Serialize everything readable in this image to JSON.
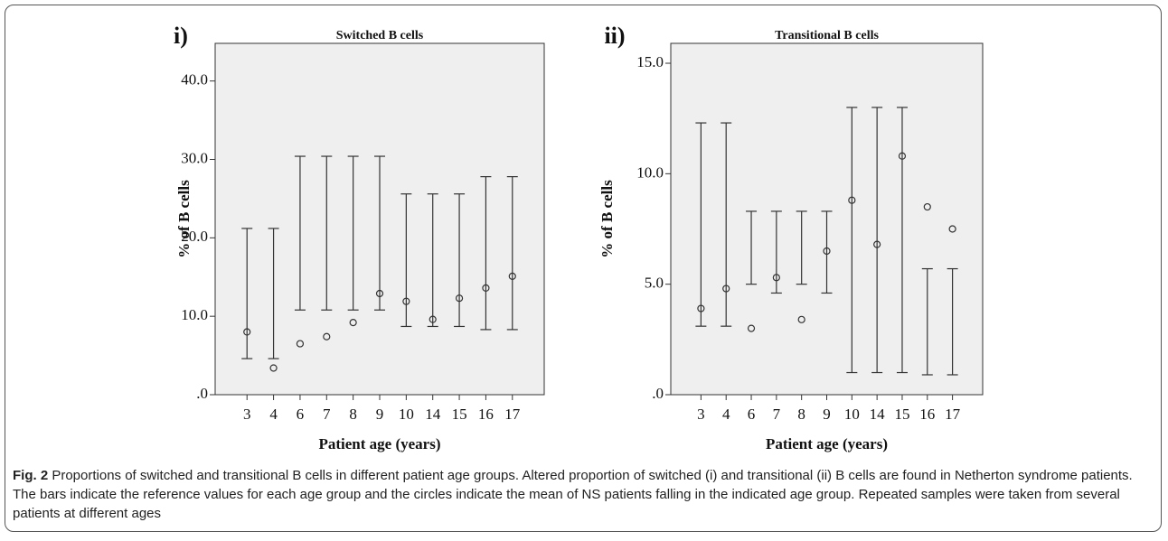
{
  "chart_data": [
    {
      "type": "range",
      "panel": "i)",
      "title": "Switched B cells",
      "ylabel": "% of B cells",
      "xlabel": "Patient age (years)",
      "categories": [
        "3",
        "4",
        "6",
        "7",
        "8",
        "9",
        "10",
        "14",
        "15",
        "16",
        "17"
      ],
      "low": [
        4.6,
        4.6,
        10.8,
        10.8,
        10.8,
        10.8,
        8.7,
        8.7,
        8.7,
        8.3,
        8.3
      ],
      "high": [
        21.2,
        21.2,
        30.4,
        30.4,
        30.4,
        30.4,
        25.6,
        25.6,
        25.6,
        27.8,
        27.8
      ],
      "means": [
        8.0,
        3.4,
        6.5,
        7.4,
        9.2,
        12.9,
        11.9,
        9.6,
        12.3,
        13.6,
        15.1
      ],
      "ylim": [
        0,
        44.8
      ],
      "yticks": [
        {
          "value": 0,
          "label": ".0"
        },
        {
          "value": 10,
          "label": "10.0"
        },
        {
          "value": 20,
          "label": "20.0"
        },
        {
          "value": 30,
          "label": "30.0"
        },
        {
          "value": 40,
          "label": "40.0"
        }
      ],
      "background": "#efefef",
      "color": "#333333"
    },
    {
      "type": "range",
      "panel": "ii)",
      "title": "Transitional B cells",
      "ylabel": "% of B cells",
      "xlabel": "Patient age (years)",
      "categories": [
        "3",
        "4",
        "6",
        "7",
        "8",
        "9",
        "10",
        "14",
        "15",
        "16",
        "17"
      ],
      "low": [
        3.1,
        3.1,
        5.0,
        4.6,
        5.0,
        4.6,
        1.0,
        1.0,
        1.0,
        0.9,
        0.9
      ],
      "high": [
        12.3,
        12.3,
        8.3,
        8.3,
        8.3,
        8.3,
        13.0,
        13.0,
        13.0,
        5.7,
        5.7
      ],
      "means": [
        3.9,
        4.8,
        3.0,
        5.3,
        3.4,
        6.5,
        8.8,
        6.8,
        10.8,
        8.5,
        7.5
      ],
      "ylim": [
        0,
        15.9
      ],
      "yticks": [
        {
          "value": 0,
          "label": ".0"
        },
        {
          "value": 5,
          "label": "5.0"
        },
        {
          "value": 10,
          "label": "10.0"
        },
        {
          "value": 15,
          "label": "15.0"
        }
      ],
      "background": "#efefef",
      "color": "#333333"
    }
  ],
  "caption": {
    "label": "Fig. 2",
    "text": "Proportions of switched and transitional B cells in different patient age groups. Altered proportion of switched (i) and transitional (ii) B cells are found in Netherton syndrome patients. The bars indicate the reference values for each age group and the circles indicate the mean of NS patients falling in the indicated age group. Repeated samples were taken from several patients at different ages"
  }
}
